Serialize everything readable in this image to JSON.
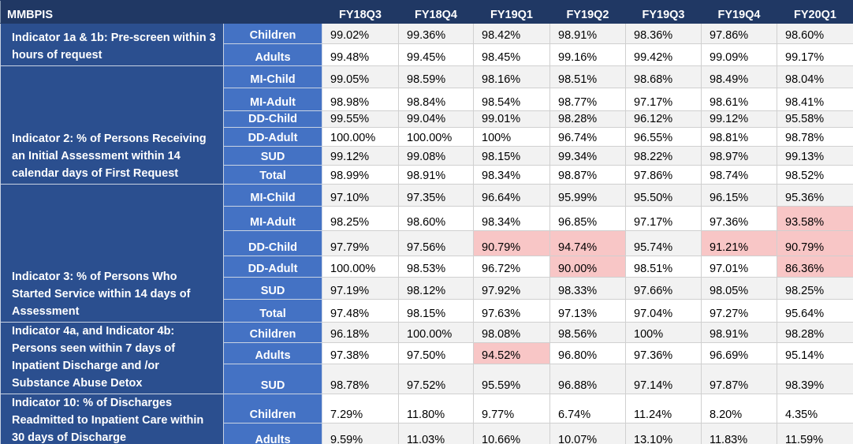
{
  "header": {
    "title": "MMBPIS",
    "columns": [
      "FY18Q3",
      "FY18Q4",
      "FY19Q1",
      "FY19Q2",
      "FY19Q3",
      "FY19Q4",
      "FY20Q1"
    ]
  },
  "highlight_color": "#f8c6c6",
  "groups": [
    {
      "label": "Indicator 1a & 1b: Pre-screen within 3 hours of request",
      "rows": [
        {
          "label": "Children",
          "values": [
            "99.02%",
            "99.36%",
            "98.42%",
            "98.91%",
            "98.36%",
            "97.86%",
            "98.60%"
          ]
        },
        {
          "label": "Adults",
          "values": [
            "99.48%",
            "99.45%",
            "98.45%",
            "99.16%",
            "99.42%",
            "99.09%",
            "99.17%"
          ]
        }
      ]
    },
    {
      "label": "Indicator 2: % of Persons Receiving an Initial Assessment within 14 calendar days of First Request",
      "rows": [
        {
          "label": "MI-Child",
          "values": [
            "99.05%",
            "98.59%",
            "98.16%",
            "98.51%",
            "98.68%",
            "98.49%",
            "98.04%"
          ]
        },
        {
          "label": "MI-Adult",
          "values": [
            "98.98%",
            "98.84%",
            "98.54%",
            "98.77%",
            "97.17%",
            "98.61%",
            "98.41%"
          ]
        },
        {
          "label": "DD-Child",
          "values": [
            "99.55%",
            "99.04%",
            "99.01%",
            "98.28%",
            "96.12%",
            "99.12%",
            "95.58%"
          ]
        },
        {
          "label": "DD-Adult",
          "values": [
            "100.00%",
            "100.00%",
            "100%",
            "96.74%",
            "96.55%",
            "98.81%",
            "98.78%"
          ]
        },
        {
          "label": "SUD",
          "values": [
            "99.12%",
            "99.08%",
            "98.15%",
            "99.34%",
            "98.22%",
            "98.97%",
            "99.13%"
          ]
        },
        {
          "label": "Total",
          "values": [
            "98.99%",
            "98.91%",
            "98.34%",
            "98.87%",
            "97.86%",
            "98.74%",
            "98.52%"
          ]
        }
      ]
    },
    {
      "label": "Indicator 3: % of Persons Who Started Service within 14 days of Assessment",
      "rows": [
        {
          "label": "MI-Child",
          "values": [
            "97.10%",
            "97.35%",
            "96.64%",
            "95.99%",
            "95.50%",
            "96.15%",
            "95.36%"
          ]
        },
        {
          "label": "MI-Adult",
          "values": [
            "98.25%",
            "98.60%",
            "98.34%",
            "96.85%",
            "97.17%",
            "97.36%",
            "93.58%"
          ],
          "highlighted": [
            6
          ]
        },
        {
          "label": "DD-Child",
          "values": [
            "97.79%",
            "97.56%",
            "90.79%",
            "94.74%",
            "95.74%",
            "91.21%",
            "90.79%"
          ],
          "highlighted": [
            2,
            3,
            5,
            6
          ]
        },
        {
          "label": "DD-Adult",
          "values": [
            "100.00%",
            "98.53%",
            "96.72%",
            "90.00%",
            "98.51%",
            "97.01%",
            "86.36%"
          ],
          "highlighted": [
            3,
            6
          ]
        },
        {
          "label": "SUD",
          "values": [
            "97.19%",
            "98.12%",
            "97.92%",
            "98.33%",
            "97.66%",
            "98.05%",
            "98.25%"
          ]
        },
        {
          "label": "Total",
          "values": [
            "97.48%",
            "98.15%",
            "97.63%",
            "97.13%",
            "97.04%",
            "97.27%",
            "95.64%"
          ]
        }
      ]
    },
    {
      "label": "Indicator 4a, and Indicator 4b: Persons seen within 7 days of Inpatient Discharge and /or Substance Abuse Detox",
      "rows": [
        {
          "label": "Children",
          "values": [
            "96.18%",
            "100.00%",
            "98.08%",
            "98.56%",
            "100%",
            "98.91%",
            "98.28%"
          ]
        },
        {
          "label": "Adults",
          "values": [
            "97.38%",
            "97.50%",
            "94.52%",
            "96.80%",
            "97.36%",
            "96.69%",
            "95.14%"
          ],
          "highlighted": [
            2
          ]
        },
        {
          "label": "SUD",
          "values": [
            "98.78%",
            "97.52%",
            "95.59%",
            "96.88%",
            "97.14%",
            "97.87%",
            "98.39%"
          ]
        }
      ]
    },
    {
      "label": "Indicator 10: % of Discharges Readmitted to Inpatient Care within 30 days of Discharge",
      "rows": [
        {
          "label": "Children",
          "values": [
            "7.29%",
            "11.80%",
            "9.77%",
            "6.74%",
            "11.24%",
            "8.20%",
            "4.35%"
          ]
        },
        {
          "label": "Adults",
          "values": [
            "9.59%",
            "11.03%",
            "10.66%",
            "10.07%",
            "13.10%",
            "11.83%",
            "11.59%"
          ]
        }
      ]
    }
  ]
}
